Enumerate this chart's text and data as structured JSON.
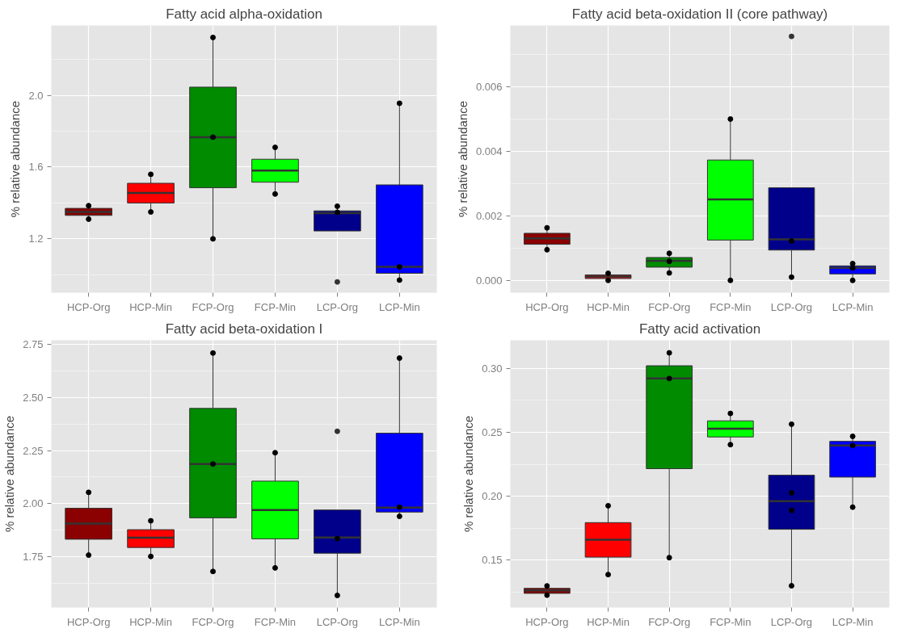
{
  "chart_data": [
    {
      "type": "box",
      "title": "Fatty acid alpha-oxidation",
      "ylabel": "% relative abundance",
      "categories": [
        "HCP-Org",
        "HCP-Min",
        "FCP-Org",
        "FCP-Min",
        "LCP-Org",
        "LCP-Min"
      ],
      "colors": [
        "#8b0000",
        "#ff0000",
        "#008b00",
        "#00ff00",
        "#00008b",
        "#0000ff"
      ],
      "ylim": [
        0.9,
        2.39
      ],
      "yticks": [
        1.2,
        1.6,
        {
          "value": 2.0,
          "label": "2.0"
        }
      ],
      "grid": true,
      "boxes": [
        {
          "low": 1.31,
          "q1": 1.331,
          "median": 1.35,
          "q3": 1.37,
          "high": 1.385
        },
        {
          "low": 1.35,
          "q1": 1.4,
          "median": 1.456,
          "q3": 1.51,
          "high": 1.56
        },
        {
          "low": 1.2,
          "q1": 1.485,
          "median": 1.767,
          "q3": 2.046,
          "high": 2.323
        },
        {
          "low": 1.45,
          "q1": 1.516,
          "median": 1.581,
          "q3": 1.644,
          "high": 1.71
        },
        {
          "low": 1.244,
          "q1": 1.244,
          "median": 1.343,
          "q3": 1.356,
          "high": 1.382,
          "outliers": [
            0.96
          ]
        },
        {
          "low": 0.977,
          "q1": 1.008,
          "median": 1.044,
          "q3": 1.501,
          "high": 1.956
        }
      ],
      "series": [
        {
          "type": "scatter",
          "color": "#000000",
          "x": [
            "HCP-Org",
            "HCP-Org",
            "HCP-Min",
            "HCP-Min",
            "FCP-Org",
            "FCP-Org",
            "FCP-Org",
            "FCP-Min",
            "FCP-Min",
            "LCP-Org",
            "LCP-Org",
            "LCP-Org",
            "LCP-Min",
            "LCP-Min",
            "LCP-Min"
          ],
          "values": [
            1.31,
            1.385,
            1.56,
            1.35,
            2.323,
            1.767,
            1.2,
            1.71,
            1.45,
            null,
            1.348,
            1.382,
            1.956,
            1.044,
            0.97
          ]
        }
      ]
    },
    {
      "type": "box",
      "title": "Fatty acid beta-oxidation II (core pathway)",
      "ylabel": "% relative abundance",
      "categories": [
        "HCP-Org",
        "HCP-Min",
        "FCP-Org",
        "FCP-Min",
        "LCP-Org",
        "LCP-Min"
      ],
      "colors": [
        "#8b0000",
        "#ff0000",
        "#008b00",
        "#00ff00",
        "#00008b",
        "#0000ff"
      ],
      "ylim": [
        -0.00038,
        0.0079
      ],
      "yticks": [
        {
          "value": 0,
          "label": "0.000"
        },
        {
          "value": 0.002,
          "label": "0.002"
        },
        {
          "value": 0.004,
          "label": "0.004"
        },
        {
          "value": 0.006,
          "label": "0.006"
        }
      ],
      "grid": true,
      "boxes": [
        {
          "low": 0.00095,
          "q1": 0.00112,
          "median": 0.0013,
          "q3": 0.00146,
          "high": 0.00163
        },
        {
          "low": 0.0,
          "q1": 6e-05,
          "median": 0.00012,
          "q3": 0.00017,
          "high": 0.0002
        },
        {
          "low": 0.00025,
          "q1": 0.00041,
          "median": 0.00061,
          "q3": 0.00071,
          "high": 0.00084
        },
        {
          "low": 0.0,
          "q1": 0.00125,
          "median": 0.00251,
          "q3": 0.00373,
          "high": 0.00499
        },
        {
          "low": 0.0001,
          "q1": 0.00094,
          "median": 0.00127,
          "q3": 0.00287,
          "high": 0.00287,
          "outliers": [
            0.00756
          ]
        },
        {
          "low": 0.0,
          "q1": 0.0002,
          "median": 0.00039,
          "q3": 0.00045,
          "high": 0.0005
        }
      ],
      "series": [
        {
          "type": "scatter",
          "color": "#000000",
          "x": [
            "HCP-Org",
            "HCP-Org",
            "HCP-Min",
            "HCP-Min",
            "FCP-Org",
            "FCP-Org",
            "FCP-Org",
            "FCP-Min",
            "FCP-Min",
            "LCP-Org",
            "LCP-Org",
            "LCP-Org",
            "LCP-Min",
            "LCP-Min",
            "LCP-Min"
          ],
          "values": [
            0.00163,
            0.00095,
            0.00022,
            0.0,
            0.00059,
            0.00084,
            0.00023,
            0.005,
            0.0,
            null,
            0.00122,
            0.0001,
            0.00038,
            0.00052,
            0.0
          ]
        }
      ]
    },
    {
      "type": "box",
      "title": "Fatty acid beta-oxidation I",
      "ylabel": "% relative abundance",
      "categories": [
        "HCP-Org",
        "HCP-Min",
        "FCP-Org",
        "FCP-Min",
        "LCP-Org",
        "LCP-Min"
      ],
      "colors": [
        "#8b0000",
        "#ff0000",
        "#008b00",
        "#00ff00",
        "#00008b",
        "#0000ff"
      ],
      "ylim": [
        1.51,
        2.77
      ],
      "yticks": [
        1.75,
        {
          "value": 2.0,
          "label": "2.00"
        },
        2.25,
        {
          "value": 2.5,
          "label": "2.50"
        },
        2.75
      ],
      "grid": true,
      "boxes": [
        {
          "low": 1.757,
          "q1": 1.832,
          "median": 1.906,
          "q3": 1.978,
          "high": 2.053
        },
        {
          "low": 1.751,
          "q1": 1.793,
          "median": 1.839,
          "q3": 1.877,
          "high": 1.919
        },
        {
          "low": 1.68,
          "q1": 1.933,
          "median": 2.187,
          "q3": 2.449,
          "high": 2.71
        },
        {
          "low": 1.697,
          "q1": 1.834,
          "median": 1.97,
          "q3": 2.106,
          "high": 2.24
        },
        {
          "low": 1.567,
          "q1": 1.766,
          "median": 1.84,
          "q3": 1.97,
          "high": 1.97,
          "outliers": [
            2.341
          ]
        },
        {
          "low": 1.935,
          "q1": 1.96,
          "median": 1.981,
          "q3": 2.332,
          "high": 2.686
        }
      ],
      "series": [
        {
          "type": "scatter",
          "color": "#000000",
          "x": [
            "HCP-Org",
            "HCP-Org",
            "HCP-Min",
            "HCP-Min",
            "FCP-Org",
            "FCP-Org",
            "FCP-Org",
            "FCP-Min",
            "FCP-Min",
            "LCP-Org",
            "LCP-Org",
            "LCP-Org",
            "LCP-Min",
            "LCP-Min",
            "LCP-Min"
          ],
          "values": [
            2.053,
            1.757,
            1.919,
            1.751,
            2.71,
            2.187,
            1.68,
            2.24,
            1.697,
            null,
            1.835,
            1.567,
            2.686,
            1.983,
            1.94
          ]
        }
      ]
    },
    {
      "type": "box",
      "title": "Fatty acid activation",
      "ylabel": "% relative abundance",
      "categories": [
        "HCP-Org",
        "HCP-Min",
        "FCP-Org",
        "FCP-Min",
        "LCP-Org",
        "LCP-Min"
      ],
      "colors": [
        "#8b0000",
        "#ff0000",
        "#008b00",
        "#00ff00",
        "#00008b",
        "#0000ff"
      ],
      "ylim": [
        0.113,
        0.322
      ],
      "yticks": [
        0.15,
        {
          "value": 0.2,
          "label": "0.20"
        },
        0.25,
        {
          "value": 0.3,
          "label": "0.30"
        }
      ],
      "grid": true,
      "boxes": [
        {
          "low": 0.1227,
          "q1": 0.1241,
          "median": 0.1264,
          "q3": 0.128,
          "high": 0.1299
        },
        {
          "low": 0.1388,
          "q1": 0.1524,
          "median": 0.166,
          "q3": 0.1794,
          "high": 0.1926
        },
        {
          "low": 0.152,
          "q1": 0.2216,
          "median": 0.2921,
          "q3": 0.3021,
          "high": 0.3122
        },
        {
          "low": 0.2404,
          "q1": 0.2464,
          "median": 0.2529,
          "q3": 0.259,
          "high": 0.2648
        },
        {
          "low": 0.13,
          "q1": 0.1742,
          "median": 0.1962,
          "q3": 0.2165,
          "high": 0.2564
        },
        {
          "low": 0.1915,
          "q1": 0.215,
          "median": 0.2397,
          "q3": 0.243,
          "high": 0.2469
        }
      ],
      "series": [
        {
          "type": "scatter",
          "color": "#000000",
          "x": [
            "HCP-Org",
            "HCP-Org",
            "HCP-Min",
            "HCP-Min",
            "FCP-Org",
            "FCP-Org",
            "FCP-Org",
            "FCP-Min",
            "FCP-Min",
            "LCP-Org",
            "LCP-Org",
            "LCP-Org",
            "LCP-Org",
            "LCP-Min",
            "LCP-Min",
            "LCP-Min"
          ],
          "values": [
            0.1299,
            0.1227,
            0.1926,
            0.1388,
            0.3122,
            0.2921,
            0.152,
            0.2648,
            0.2404,
            0.2564,
            0.2027,
            0.189,
            0.13,
            0.2469,
            0.2397,
            0.1915
          ]
        }
      ]
    }
  ]
}
